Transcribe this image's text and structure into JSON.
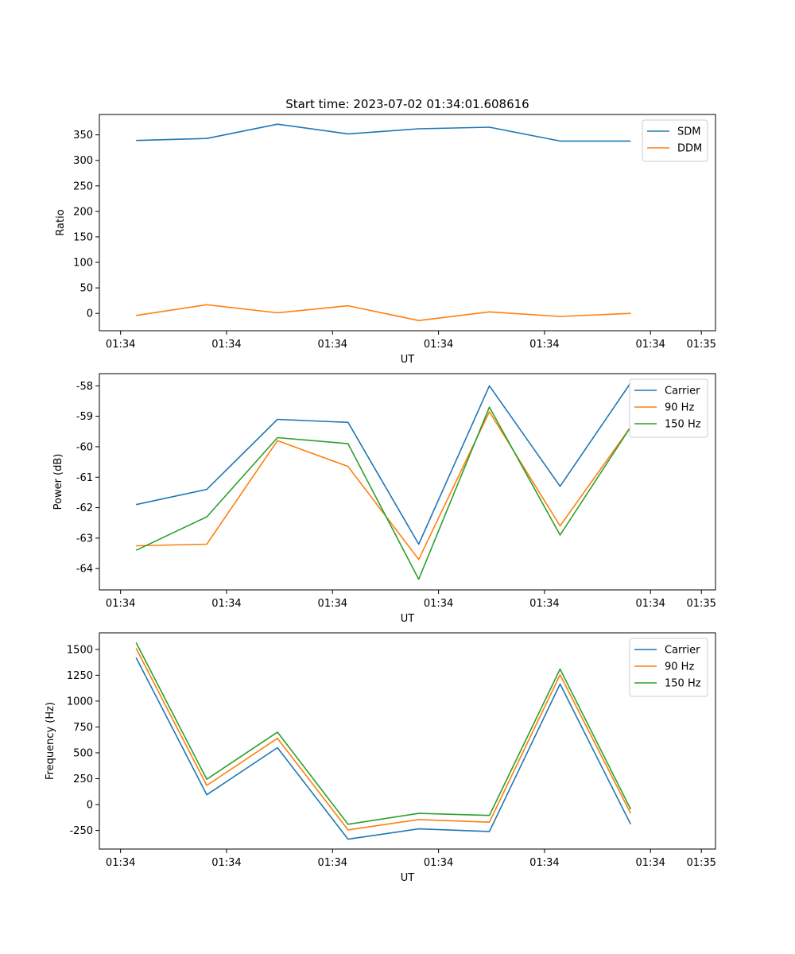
{
  "chart_data": [
    {
      "type": "line",
      "title": "Start time: 2023-07-02 01:34:01.608616",
      "xlabel": "UT",
      "ylabel": "Ratio",
      "x": [
        1,
        2,
        3,
        4,
        5,
        6,
        7,
        8
      ],
      "xlim": [
        0.48,
        9.2
      ],
      "ylim": [
        -34,
        390
      ],
      "yticks": [
        0,
        50,
        100,
        150,
        200,
        250,
        300,
        350
      ],
      "xtick_positions": [
        0.78,
        2.28,
        3.78,
        5.28,
        6.78,
        8.28,
        9.0
      ],
      "xtick_labels": [
        "01:34",
        "01:34",
        "01:34",
        "01:34",
        "01:34",
        "01:34",
        "01:35"
      ],
      "legend": "top-right",
      "series": [
        {
          "name": "SDM",
          "color": "#1f77b4",
          "values": [
            339,
            343,
            371,
            352,
            362,
            365,
            338,
            338
          ]
        },
        {
          "name": "DDM",
          "color": "#ff7f0e",
          "values": [
            -4,
            17,
            1,
            15,
            -14,
            3,
            -6,
            0
          ]
        }
      ]
    },
    {
      "type": "line",
      "title": "",
      "xlabel": "UT",
      "ylabel": "Power (dB)",
      "x": [
        1,
        2,
        3,
        4,
        5,
        6,
        7,
        8
      ],
      "xlim": [
        0.48,
        9.2
      ],
      "ylim": [
        -64.7,
        -57.6
      ],
      "yticks": [
        -64,
        -63,
        -62,
        -61,
        -60,
        -59,
        -58
      ],
      "xtick_positions": [
        0.78,
        2.28,
        3.78,
        5.28,
        6.78,
        8.28,
        9.0
      ],
      "xtick_labels": [
        "01:34",
        "01:34",
        "01:34",
        "01:34",
        "01:34",
        "01:34",
        "01:35"
      ],
      "legend": "top-right",
      "series": [
        {
          "name": "Carrier",
          "color": "#1f77b4",
          "values": [
            -61.9,
            -61.4,
            -59.1,
            -59.2,
            -63.2,
            -58.0,
            -61.3,
            -57.9
          ]
        },
        {
          "name": "90 Hz",
          "color": "#ff7f0e",
          "values": [
            -63.25,
            -63.2,
            -59.8,
            -60.65,
            -63.7,
            -58.85,
            -62.6,
            -59.35
          ]
        },
        {
          "name": "150 Hz",
          "color": "#2ca02c",
          "values": [
            -63.4,
            -62.3,
            -59.7,
            -59.9,
            -64.35,
            -58.7,
            -62.9,
            -59.35
          ]
        }
      ]
    },
    {
      "type": "line",
      "title": "",
      "xlabel": "UT",
      "ylabel": "Frequency (Hz)",
      "x": [
        1,
        2,
        3,
        4,
        5,
        6,
        7,
        8
      ],
      "xlim": [
        0.48,
        9.2
      ],
      "ylim": [
        -430,
        1660
      ],
      "yticks": [
        -250,
        0,
        250,
        500,
        750,
        1000,
        1250,
        1500
      ],
      "xtick_positions": [
        0.78,
        2.28,
        3.78,
        5.28,
        6.78,
        8.28,
        9.0
      ],
      "xtick_labels": [
        "01:34",
        "01:34",
        "01:34",
        "01:34",
        "01:34",
        "01:34",
        "01:35"
      ],
      "legend": "top-right",
      "series": [
        {
          "name": "Carrier",
          "color": "#1f77b4",
          "values": [
            1420,
            95,
            550,
            -335,
            -235,
            -260,
            1165,
            -190
          ]
        },
        {
          "name": "90 Hz",
          "color": "#ff7f0e",
          "values": [
            1510,
            185,
            640,
            -245,
            -145,
            -170,
            1255,
            -85
          ]
        },
        {
          "name": "150 Hz",
          "color": "#2ca02c",
          "values": [
            1565,
            245,
            700,
            -190,
            -85,
            -105,
            1310,
            -45
          ]
        }
      ]
    }
  ]
}
